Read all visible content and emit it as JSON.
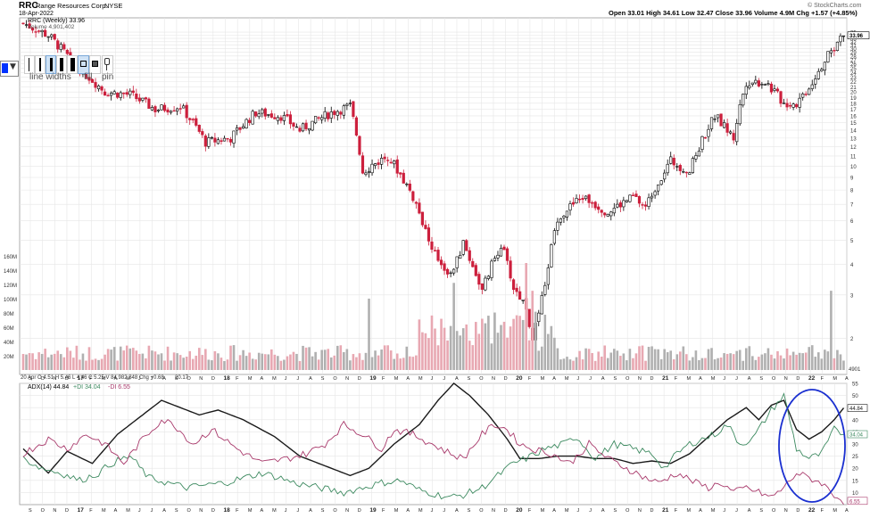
{
  "header": {
    "symbol": "RRC",
    "company": "Range Resources Corp.",
    "exchange": "NYSE",
    "date": "18-Apr-2022",
    "quote": "Open 33.01  High 34.61  Low 32.47  Close 33.96  Volume 4.9M  Chg +1.57 (+4.85%)",
    "watermark": "© StockCharts.com"
  },
  "legend": {
    "price": "RRC (Weekly) 33.96",
    "volume": "Volume 4,901,402",
    "sma": "20 Apr  O 4.51  H 5.46  L 4.46  C 5.25  V 84,982,848  Chg +0.68",
    "adx": "ADX(14) 44.84",
    "pdi": "+DI 34.04",
    "mdi": "-DI 6.55",
    "sma_tail": "20.17"
  },
  "toolbar": {
    "line_widths": "line widths",
    "fill": "fill",
    "pin": "pin"
  },
  "colors": {
    "up": "#000000",
    "down": "#cc1f3c",
    "vol_up": "#b0b0b0",
    "vol_down": "#e8a8b2",
    "adx": "#1a1a1a",
    "pdi": "#3d8a60",
    "mdi": "#a8386a",
    "ellipse": "#1a2fd0",
    "grid": "#e6e6e6",
    "accent": "#0033ff"
  },
  "chart_data": [
    {
      "type": "candlestick",
      "title": "RRC (Weekly) 33.96",
      "ylabel": "",
      "ylim": [
        1.5,
        40
      ],
      "scale": "log",
      "y_ticks": [
        2,
        3,
        4,
        5,
        6,
        7,
        8,
        9,
        10,
        11,
        12,
        13,
        14,
        15,
        16,
        17,
        18,
        19,
        20,
        21,
        22,
        23,
        24,
        25,
        26,
        27,
        28,
        29,
        30,
        31,
        32,
        33,
        34,
        35
      ],
      "last_value": "33.96",
      "x_labels": [
        "S",
        "O",
        "N",
        "D",
        "17",
        "F",
        "M",
        "A",
        "M",
        "J",
        "J",
        "A",
        "S",
        "O",
        "N",
        "D",
        "18",
        "F",
        "M",
        "A",
        "M",
        "J",
        "J",
        "A",
        "S",
        "O",
        "N",
        "D",
        "19",
        "F",
        "M",
        "A",
        "M",
        "J",
        "J",
        "A",
        "S",
        "O",
        "N",
        "D",
        "20",
        "F",
        "M",
        "A",
        "M",
        "J",
        "J",
        "A",
        "S",
        "O",
        "N",
        "D",
        "21",
        "F",
        "M",
        "A",
        "M",
        "J",
        "J",
        "A",
        "S",
        "O",
        "N",
        "D",
        "22",
        "F",
        "M",
        "A"
      ],
      "anchors": [
        {
          "week": 0,
          "close": 38
        },
        {
          "week": 8,
          "close": 34
        },
        {
          "week": 16,
          "close": 26
        },
        {
          "week": 26,
          "close": 20
        },
        {
          "week": 34,
          "close": 19.5
        },
        {
          "week": 42,
          "close": 17
        },
        {
          "week": 50,
          "close": 17.5
        },
        {
          "week": 58,
          "close": 12.5
        },
        {
          "week": 66,
          "close": 13
        },
        {
          "week": 74,
          "close": 16.5
        },
        {
          "week": 82,
          "close": 16
        },
        {
          "week": 88,
          "close": 14
        },
        {
          "week": 98,
          "close": 16.5
        },
        {
          "week": 104,
          "close": 17.5
        },
        {
          "week": 108,
          "close": 9.5
        },
        {
          "week": 116,
          "close": 11
        },
        {
          "week": 124,
          "close": 7.5
        },
        {
          "week": 130,
          "close": 4.5
        },
        {
          "week": 136,
          "close": 3.6
        },
        {
          "week": 140,
          "close": 4.8
        },
        {
          "week": 146,
          "close": 3.1
        },
        {
          "week": 152,
          "close": 4.8
        },
        {
          "week": 156,
          "close": 3.2
        },
        {
          "week": 160,
          "close": 2.7
        },
        {
          "week": 162,
          "close": 1.9
        },
        {
          "week": 166,
          "close": 3.2
        },
        {
          "week": 170,
          "close": 6.2
        },
        {
          "week": 178,
          "close": 7.5
        },
        {
          "week": 186,
          "close": 6.5
        },
        {
          "week": 194,
          "close": 7.5
        },
        {
          "week": 198,
          "close": 6.8
        },
        {
          "week": 206,
          "close": 10.5
        },
        {
          "week": 212,
          "close": 9.5
        },
        {
          "week": 220,
          "close": 16
        },
        {
          "week": 226,
          "close": 13
        },
        {
          "week": 230,
          "close": 22
        },
        {
          "week": 236,
          "close": 22
        },
        {
          "week": 242,
          "close": 18
        },
        {
          "week": 246,
          "close": 18
        },
        {
          "week": 250,
          "close": 21
        },
        {
          "week": 256,
          "close": 28
        },
        {
          "week": 261,
          "close": 33.96
        }
      ],
      "volume_y_labels": [
        "20M",
        "40M",
        "60M",
        "80M",
        "100M",
        "120M",
        "140M",
        "160M"
      ],
      "volume_last": "4901"
    },
    {
      "type": "line",
      "title": "ADX(14) 44.84  +DI 34.04  -DI 6.55",
      "ylim": [
        5,
        55
      ],
      "y_ticks": [
        10,
        15,
        20,
        25,
        30,
        35,
        40,
        45,
        50,
        55
      ],
      "series": [
        {
          "name": "ADX(14) 44.84",
          "last": "44.84",
          "anchors": [
            [
              0,
              28
            ],
            [
              8,
              18
            ],
            [
              14,
              27
            ],
            [
              22,
              22
            ],
            [
              30,
              34
            ],
            [
              38,
              42
            ],
            [
              44,
              48
            ],
            [
              50,
              45
            ],
            [
              56,
              42
            ],
            [
              62,
              44
            ],
            [
              70,
              40
            ],
            [
              80,
              33
            ],
            [
              88,
              25
            ],
            [
              96,
              21
            ],
            [
              104,
              17
            ],
            [
              110,
              20
            ],
            [
              118,
              30
            ],
            [
              126,
              38
            ],
            [
              132,
              48
            ],
            [
              137,
              55
            ],
            [
              142,
              50
            ],
            [
              148,
              42
            ],
            [
              154,
              32
            ],
            [
              158,
              24
            ],
            [
              164,
              24
            ],
            [
              170,
              25
            ],
            [
              176,
              25
            ],
            [
              182,
              24
            ],
            [
              188,
              24
            ],
            [
              194,
              22
            ],
            [
              200,
              23
            ],
            [
              206,
              22
            ],
            [
              212,
              26
            ],
            [
              218,
              33
            ],
            [
              224,
              40
            ],
            [
              230,
              45
            ],
            [
              234,
              40
            ],
            [
              238,
              46
            ],
            [
              242,
              48
            ],
            [
              246,
              36
            ],
            [
              250,
              32
            ],
            [
              254,
              35
            ],
            [
              258,
              40
            ],
            [
              261,
              44.84
            ]
          ]
        },
        {
          "name": "+DI 34.04",
          "last": "34.04",
          "anchors": [
            [
              0,
              24
            ],
            [
              6,
              20
            ],
            [
              12,
              18
            ],
            [
              18,
              15
            ],
            [
              24,
              18
            ],
            [
              28,
              22
            ],
            [
              34,
              25
            ],
            [
              40,
              16
            ],
            [
              46,
              14
            ],
            [
              52,
              12
            ],
            [
              58,
              13
            ],
            [
              64,
              14
            ],
            [
              70,
              16
            ],
            [
              76,
              18
            ],
            [
              82,
              16
            ],
            [
              86,
              14
            ],
            [
              94,
              12
            ],
            [
              102,
              10
            ],
            [
              108,
              12
            ],
            [
              114,
              14
            ],
            [
              120,
              15
            ],
            [
              126,
              11
            ],
            [
              132,
              9
            ],
            [
              136,
              8
            ],
            [
              140,
              9
            ],
            [
              146,
              12
            ],
            [
              152,
              18
            ],
            [
              156,
              22
            ],
            [
              160,
              24
            ],
            [
              166,
              28
            ],
            [
              172,
              30
            ],
            [
              176,
              33
            ],
            [
              182,
              24
            ],
            [
              188,
              30
            ],
            [
              194,
              28
            ],
            [
              200,
              26
            ],
            [
              204,
              20
            ],
            [
              208,
              26
            ],
            [
              212,
              30
            ],
            [
              216,
              32
            ],
            [
              220,
              34
            ],
            [
              224,
              38
            ],
            [
              228,
              30
            ],
            [
              232,
              32
            ],
            [
              234,
              36
            ],
            [
              238,
              44
            ],
            [
              242,
              50
            ],
            [
              246,
              28
            ],
            [
              250,
              24
            ],
            [
              254,
              26
            ],
            [
              258,
              36
            ],
            [
              261,
              34.04
            ]
          ]
        },
        {
          "name": "-DI 6.55",
          "last": "6.55",
          "anchors": [
            [
              0,
              26
            ],
            [
              8,
              32
            ],
            [
              14,
              28
            ],
            [
              20,
              34
            ],
            [
              26,
              30
            ],
            [
              32,
              22
            ],
            [
              38,
              32
            ],
            [
              44,
              40
            ],
            [
              48,
              38
            ],
            [
              54,
              30
            ],
            [
              60,
              36
            ],
            [
              68,
              28
            ],
            [
              76,
              22
            ],
            [
              84,
              24
            ],
            [
              90,
              26
            ],
            [
              96,
              30
            ],
            [
              102,
              38
            ],
            [
              108,
              34
            ],
            [
              114,
              28
            ],
            [
              118,
              36
            ],
            [
              124,
              34
            ],
            [
              130,
              30
            ],
            [
              136,
              26
            ],
            [
              140,
              24
            ],
            [
              146,
              34
            ],
            [
              150,
              38
            ],
            [
              154,
              36
            ],
            [
              158,
              30
            ],
            [
              162,
              28
            ],
            [
              168,
              26
            ],
            [
              174,
              22
            ],
            [
              180,
              30
            ],
            [
              186,
              24
            ],
            [
              192,
              20
            ],
            [
              198,
              16
            ],
            [
              202,
              14
            ],
            [
              208,
              18
            ],
            [
              214,
              14
            ],
            [
              218,
              12
            ],
            [
              222,
              14
            ],
            [
              226,
              10
            ],
            [
              230,
              12
            ],
            [
              234,
              10
            ],
            [
              238,
              8
            ],
            [
              242,
              12
            ],
            [
              246,
              18
            ],
            [
              250,
              16
            ],
            [
              254,
              14
            ],
            [
              258,
              9
            ],
            [
              261,
              6.55
            ]
          ]
        }
      ]
    }
  ]
}
